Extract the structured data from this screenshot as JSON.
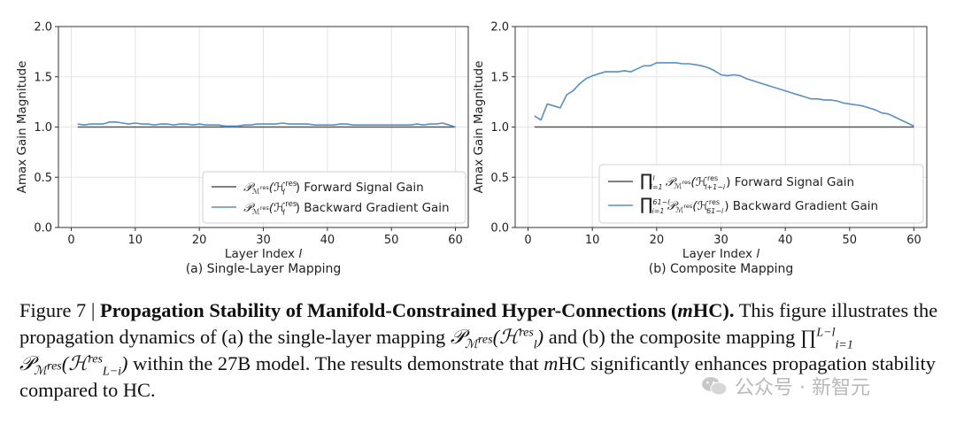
{
  "figure_number": "Figure 7",
  "chart_data": [
    {
      "type": "line",
      "id": "single",
      "subtitle": "(a) Single-Layer Mapping",
      "xlabel": "Layer Index",
      "xlabel_var": "l",
      "ylabel": "Amax Gain Magnitude",
      "xlim": [
        -2,
        62
      ],
      "ylim": [
        0,
        2
      ],
      "xticks": [
        0,
        10,
        20,
        30,
        40,
        50,
        60
      ],
      "yticks": [
        0.0,
        0.5,
        1.0,
        1.5,
        2.0
      ],
      "grid": true,
      "legend_position": "lower-right",
      "series": [
        {
          "name": "Forward Signal Gain",
          "legend_math": "P_M^res(H_l^res)",
          "color": "#555555",
          "x": [
            1,
            60
          ],
          "y": [
            1.0,
            1.0
          ]
        },
        {
          "name": "Backward Gradient Gain",
          "legend_math": "P_M^res(H_l^res)",
          "color": "#5a8fc0",
          "x": [
            1,
            2,
            3,
            4,
            5,
            6,
            7,
            8,
            9,
            10,
            11,
            12,
            13,
            14,
            15,
            16,
            17,
            18,
            19,
            20,
            21,
            22,
            23,
            24,
            25,
            26,
            27,
            28,
            29,
            30,
            31,
            32,
            33,
            34,
            35,
            36,
            37,
            38,
            39,
            40,
            41,
            42,
            43,
            44,
            45,
            46,
            47,
            48,
            49,
            50,
            51,
            52,
            53,
            54,
            55,
            56,
            57,
            58,
            59,
            60
          ],
          "y": [
            1.03,
            1.02,
            1.03,
            1.03,
            1.03,
            1.05,
            1.05,
            1.04,
            1.03,
            1.04,
            1.03,
            1.03,
            1.02,
            1.03,
            1.03,
            1.02,
            1.03,
            1.03,
            1.02,
            1.03,
            1.02,
            1.02,
            1.02,
            1.01,
            1.01,
            1.01,
            1.02,
            1.02,
            1.03,
            1.03,
            1.03,
            1.03,
            1.04,
            1.03,
            1.03,
            1.03,
            1.03,
            1.02,
            1.02,
            1.02,
            1.02,
            1.03,
            1.03,
            1.02,
            1.02,
            1.02,
            1.02,
            1.02,
            1.02,
            1.02,
            1.02,
            1.02,
            1.02,
            1.03,
            1.02,
            1.03,
            1.03,
            1.04,
            1.02,
            1.0
          ]
        }
      ]
    },
    {
      "type": "line",
      "id": "composite",
      "subtitle": "(b) Composite Mapping",
      "xlabel": "Layer Index",
      "xlabel_var": "l",
      "ylabel": "Amax Gain Magnitude",
      "xlim": [
        -2,
        62
      ],
      "ylim": [
        0,
        2
      ],
      "xticks": [
        0,
        10,
        20,
        30,
        40,
        50,
        60
      ],
      "yticks": [
        0.0,
        0.5,
        1.0,
        1.5,
        2.0
      ],
      "grid": true,
      "legend_position": "lower-right",
      "series": [
        {
          "name": "Forward Signal Gain",
          "legend_math": "prod_{i=1}^{l} P_M^res(H_{l+1-i}^res)",
          "color": "#555555",
          "x": [
            1,
            60
          ],
          "y": [
            1.0,
            1.0
          ]
        },
        {
          "name": "Backward Gradient Gain",
          "legend_math": "prod_{i=1}^{61-l} P_M^res(H_{61-i}^res)",
          "color": "#5a8fc0",
          "x": [
            1,
            2,
            3,
            4,
            5,
            6,
            7,
            8,
            9,
            10,
            11,
            12,
            13,
            14,
            15,
            16,
            17,
            18,
            19,
            20,
            21,
            22,
            23,
            24,
            25,
            26,
            27,
            28,
            29,
            30,
            31,
            32,
            33,
            34,
            35,
            36,
            37,
            38,
            39,
            40,
            41,
            42,
            43,
            44,
            45,
            46,
            47,
            48,
            49,
            50,
            51,
            52,
            53,
            54,
            55,
            56,
            57,
            58,
            59,
            60
          ],
          "y": [
            1.11,
            1.07,
            1.23,
            1.21,
            1.19,
            1.32,
            1.36,
            1.43,
            1.48,
            1.51,
            1.53,
            1.55,
            1.55,
            1.55,
            1.56,
            1.55,
            1.58,
            1.61,
            1.61,
            1.64,
            1.64,
            1.64,
            1.64,
            1.63,
            1.63,
            1.62,
            1.61,
            1.59,
            1.56,
            1.52,
            1.51,
            1.52,
            1.51,
            1.48,
            1.46,
            1.44,
            1.42,
            1.4,
            1.38,
            1.36,
            1.34,
            1.32,
            1.3,
            1.28,
            1.28,
            1.27,
            1.27,
            1.26,
            1.24,
            1.23,
            1.22,
            1.21,
            1.19,
            1.17,
            1.14,
            1.13,
            1.1,
            1.07,
            1.04,
            1.01
          ]
        }
      ]
    }
  ],
  "caption": {
    "label": "Figure 7 |",
    "title": "Propagation Stability of Manifold-Constrained Hyper-Connections (",
    "title_m": "m",
    "title_end": "HC).",
    "t1": "This figure illustrates the propagation dynamics of (a) the single-layer mapping",
    "math_a_P": "𝒫",
    "math_a_sub": "ℳ",
    "math_a_res": "res",
    "math_a_H": "(ℋ",
    "math_a_l": "l",
    "math_a_res2": "res",
    "math_a_close": ")",
    "t2": "and (b) the composite mapping",
    "math_b_prod": "∏",
    "math_b_lower": "i=1",
    "math_b_upper": "L−l",
    "math_b_P": "𝒫",
    "math_b_sub": "ℳ",
    "math_b_res": "res",
    "math_b_H": "(ℋ",
    "math_b_sub2": "L−i",
    "math_b_res2": "res",
    "math_b_close": ")",
    "t3": "within the 27B model. The results demonstrate that",
    "t4_m": "m",
    "t4": "HC significantly enhances propagation stability compared to HC."
  },
  "watermark": "公众号 · 新智元"
}
